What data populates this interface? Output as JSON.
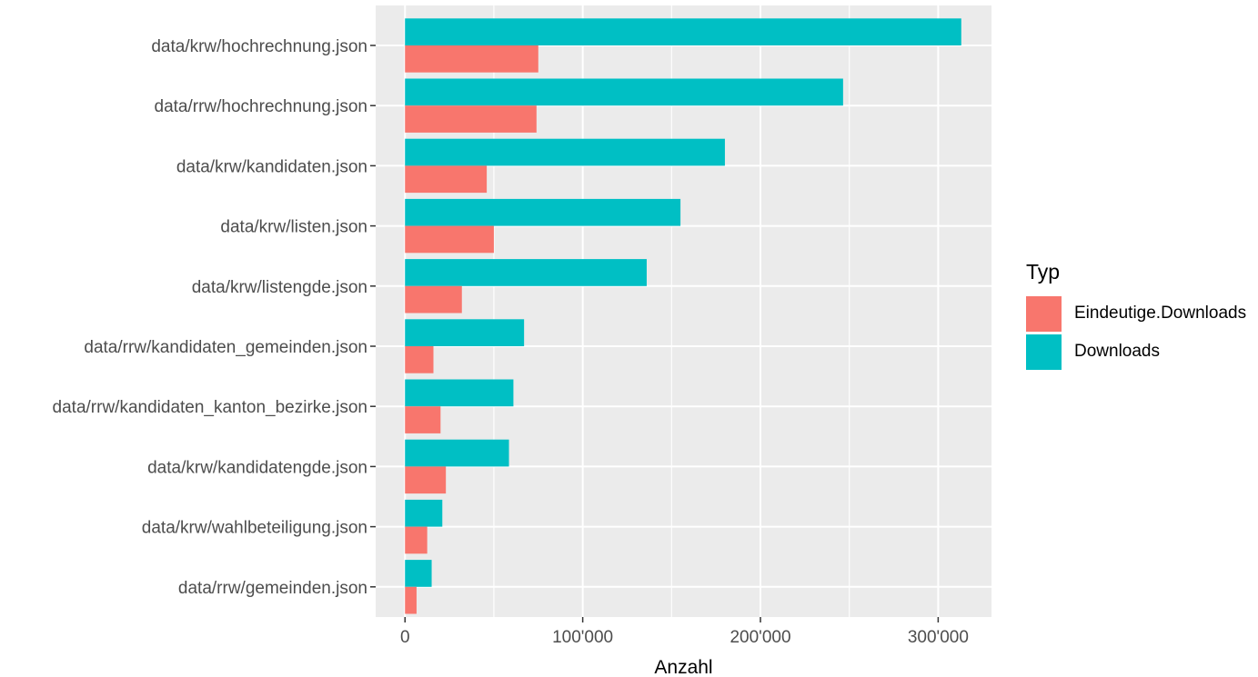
{
  "chart_data": {
    "type": "bar",
    "orientation": "horizontal",
    "grouping": "dodge",
    "categories": [
      "data/krw/hochrechnung.json",
      "data/rrw/hochrechnung.json",
      "data/krw/kandidaten.json",
      "data/krw/listen.json",
      "data/krw/listengde.json",
      "data/rrw/kandidaten_gemeinden.json",
      "data/rrw/kandidaten_kanton_bezirke.json",
      "data/krw/kandidatengde.json",
      "data/krw/wahlbeteiligung.json",
      "data/rrw/gemeinden.json"
    ],
    "series": [
      {
        "name": "Eindeutige.Downloads",
        "color": "#F8766D",
        "values": [
          75000,
          74000,
          46000,
          50000,
          32000,
          16000,
          20000,
          23000,
          12500,
          6500
        ]
      },
      {
        "name": "Downloads",
        "color": "#00BFC4",
        "values": [
          313000,
          246500,
          180000,
          155000,
          136000,
          67000,
          61000,
          58500,
          21000,
          15000
        ]
      }
    ],
    "xlim": [
      -16500,
      330000
    ],
    "xticks": [
      0,
      100000,
      200000,
      300000
    ],
    "xtick_labels": [
      "0",
      "100'000",
      "200'000",
      "300'000"
    ],
    "xlabel": "Anzahl",
    "ylabel": "",
    "legend": {
      "title": "Typ",
      "position": "right"
    },
    "grid": true,
    "panel_background": "#EBEBEB",
    "grid_color": "#FFFFFF"
  }
}
